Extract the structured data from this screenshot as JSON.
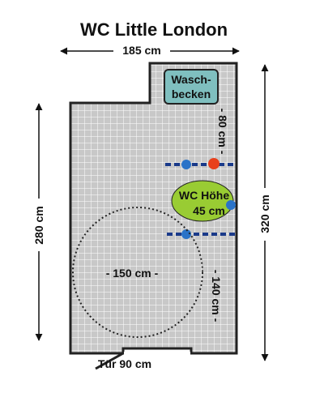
{
  "title": "WC Little London",
  "dimensions": {
    "top_width": "185 cm",
    "left_depth": "280 cm",
    "right_depth": "320 cm",
    "basin_clearance": "- 80 cm -",
    "turning_circle": "- 150 cm -",
    "wc_clearance": "- 140 cm -",
    "door": "Tür 90 cm"
  },
  "fixtures": {
    "basin_line1": "Wasch-",
    "basin_line2": "becken",
    "wc_line1": "WC Höhe",
    "wc_line2": "45 cm"
  },
  "colors": {
    "floor": "#c8c8c8",
    "grid": "#ffffff",
    "wall": "#222222",
    "basin": "#7fbfbf",
    "wc": "#99cc33",
    "grab_bar": "#1a3a8a",
    "marker_blue": "#2a73c8",
    "marker_red": "#e8401c"
  }
}
